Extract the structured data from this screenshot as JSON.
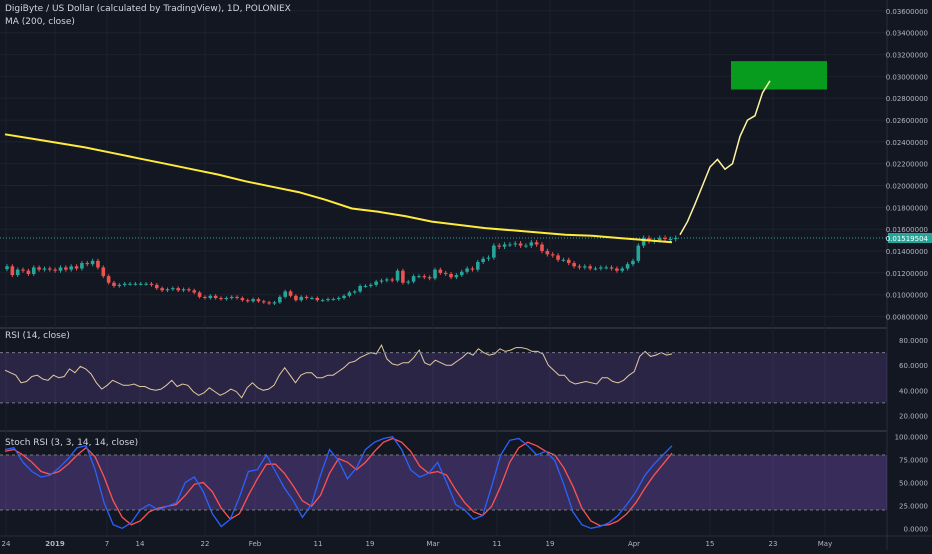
{
  "header": {
    "title": "DigiByte / US Dollar (calculated by TradingView), 1D, POLONIEX",
    "ma_label": "MA (200, close)",
    "rsi_label": "RSI (14, close)",
    "stoch_label": "Stoch RSI (3, 3, 14, 14, close)",
    "last_price": "0.01519504"
  },
  "colors": {
    "background": "#131722",
    "up": "#26a69a",
    "down": "#ef5350",
    "ma": "#ffeb3b",
    "projection": "#fff59d",
    "target": "#089c1e",
    "price_tag": "#26a69a",
    "rsi_band": "#7e57c2",
    "stoch_k": "#2962ff",
    "stoch_d": "#ff5252"
  },
  "chart_data": {
    "type": "candlestick",
    "x_ticks": [
      "24",
      "2019",
      "7",
      "14",
      "22",
      "Feb",
      "11",
      "19",
      "Mar",
      "11",
      "19",
      "Apr",
      "15",
      "23",
      "May"
    ],
    "price_axis": {
      "ticks": [
        "0.03600000",
        "0.03400000",
        "0.03200000",
        "0.03000000",
        "0.02800000",
        "0.02600000",
        "0.02400000",
        "0.02200000",
        "0.02000000",
        "0.01800000",
        "0.01600000",
        "0.01400000",
        "0.01200000",
        "0.01000000",
        "0.00800000"
      ],
      "ylim": [
        0.0075,
        0.037
      ]
    },
    "price_close": [
      0.0126,
      0.0118,
      0.0123,
      0.0122,
      0.0119,
      0.0125,
      0.0123,
      0.0124,
      0.0123,
      0.0122,
      0.0125,
      0.0123,
      0.0126,
      0.0124,
      0.0129,
      0.0128,
      0.0131,
      0.0125,
      0.0117,
      0.0111,
      0.0108,
      0.0109,
      0.011,
      0.011,
      0.011,
      0.011,
      0.011,
      0.0109,
      0.0106,
      0.0104,
      0.0105,
      0.0106,
      0.0104,
      0.0105,
      0.0104,
      0.0102,
      0.0098,
      0.0097,
      0.0099,
      0.0097,
      0.0096,
      0.0097,
      0.0098,
      0.0097,
      0.0095,
      0.0094,
      0.0096,
      0.0094,
      0.0093,
      0.0092,
      0.0093,
      0.0098,
      0.0103,
      0.0099,
      0.0095,
      0.0098,
      0.0097,
      0.0097,
      0.0095,
      0.0095,
      0.0096,
      0.0096,
      0.0097,
      0.0099,
      0.0102,
      0.0103,
      0.0108,
      0.0108,
      0.0109,
      0.0112,
      0.0113,
      0.0114,
      0.0113,
      0.0122,
      0.0111,
      0.0112,
      0.0117,
      0.0117,
      0.0116,
      0.0115,
      0.0123,
      0.012,
      0.0119,
      0.0116,
      0.0118,
      0.0121,
      0.0124,
      0.0123,
      0.013,
      0.0133,
      0.0134,
      0.0145,
      0.0144,
      0.0146,
      0.0146,
      0.0147,
      0.0145,
      0.0145,
      0.0148,
      0.0146,
      0.014,
      0.0137,
      0.0136,
      0.0132,
      0.0132,
      0.0129,
      0.0126,
      0.0125,
      0.0126,
      0.0124,
      0.0124,
      0.0125,
      0.0125,
      0.0124,
      0.0122,
      0.0124,
      0.0128,
      0.0131,
      0.0145,
      0.0152,
      0.0149,
      0.015,
      0.0152,
      0.0151,
      0.0151,
      0.0152
    ],
    "ma200": [
      0.0247,
      0.0243,
      0.0239,
      0.0235,
      0.023,
      0.0225,
      0.022,
      0.0215,
      0.021,
      0.0204,
      0.0199,
      0.0194,
      0.0187,
      0.0179,
      0.0176,
      0.0172,
      0.0167,
      0.0164,
      0.0161,
      0.0159,
      0.0157,
      0.0155,
      0.0154,
      0.0152,
      0.015,
      0.0148
    ],
    "projection": [
      0.0155,
      0.0167,
      0.0183,
      0.02,
      0.0217,
      0.0224,
      0.0215,
      0.022,
      0.0245,
      0.026,
      0.0264,
      0.0285,
      0.0296
    ],
    "target_zone": {
      "low": 0.0288,
      "high": 0.0314
    },
    "rsi": {
      "label": "RSI (14, close)",
      "ticks": [
        "80.0000",
        "60.0000",
        "40.0000",
        "20.0000"
      ],
      "ylim": [
        10,
        88
      ],
      "bands": [
        30,
        70
      ],
      "values": [
        56,
        54,
        52,
        46,
        47,
        51,
        52,
        49,
        48,
        52,
        50,
        51,
        57,
        54,
        59,
        57,
        53,
        46,
        41,
        44,
        48,
        46,
        44,
        44,
        45,
        43,
        43,
        41,
        40,
        41,
        44,
        48,
        43,
        45,
        44,
        39,
        36,
        38,
        42,
        39,
        36,
        38,
        41,
        39,
        34,
        42,
        46,
        42,
        40,
        41,
        44,
        52,
        58,
        52,
        46,
        52,
        54,
        54,
        50,
        50,
        52,
        52,
        55,
        58,
        62,
        63,
        66,
        68,
        70,
        69,
        76,
        65,
        61,
        60,
        62,
        62,
        66,
        72,
        62,
        60,
        64,
        62,
        60,
        60,
        63,
        66,
        70,
        68,
        73,
        70,
        68,
        69,
        73,
        71,
        72,
        74,
        74,
        73,
        71,
        71,
        69,
        60,
        56,
        52,
        52,
        47,
        45,
        46,
        47,
        46,
        45,
        50,
        50,
        47,
        46,
        48,
        52,
        55,
        67,
        71,
        67,
        68,
        70,
        68,
        69
      ]
    },
    "stoch_rsi": {
      "label": "Stoch RSI (3, 3, 14, 14, close)",
      "ticks": [
        "100.0000",
        "75.0000",
        "50.0000",
        "25.0000",
        "0.0000"
      ],
      "ylim": [
        -4,
        104
      ],
      "bands": [
        20,
        80
      ],
      "k": [
        86,
        88,
        72,
        62,
        56,
        58,
        66,
        76,
        88,
        90,
        64,
        28,
        4,
        0,
        6,
        20,
        26,
        20,
        24,
        28,
        50,
        56,
        40,
        16,
        2,
        10,
        34,
        62,
        64,
        80,
        62,
        44,
        30,
        12,
        26,
        58,
        86,
        74,
        54,
        66,
        86,
        94,
        98,
        100,
        86,
        64,
        56,
        60,
        72,
        50,
        26,
        20,
        10,
        14,
        46,
        80,
        96,
        98,
        90,
        80,
        84,
        74,
        48,
        18,
        4,
        0,
        2,
        6,
        14,
        26,
        40,
        58,
        70,
        80,
        90
      ],
      "d": [
        84,
        86,
        80,
        72,
        62,
        59,
        62,
        70,
        80,
        88,
        78,
        56,
        30,
        12,
        4,
        8,
        18,
        22,
        24,
        26,
        36,
        48,
        50,
        40,
        22,
        10,
        16,
        36,
        54,
        70,
        70,
        60,
        46,
        30,
        24,
        36,
        60,
        76,
        72,
        64,
        72,
        84,
        94,
        98,
        94,
        84,
        68,
        60,
        62,
        58,
        42,
        28,
        18,
        14,
        24,
        46,
        72,
        88,
        94,
        90,
        84,
        80,
        66,
        46,
        22,
        8,
        3,
        4,
        8,
        16,
        28,
        44,
        58,
        70,
        82
      ]
    }
  }
}
